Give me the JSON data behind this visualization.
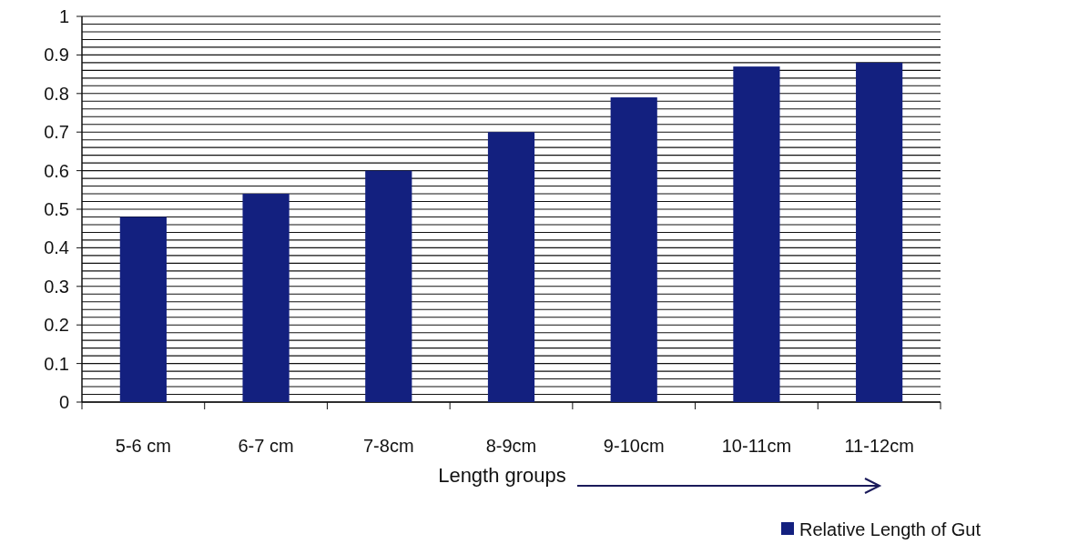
{
  "chart_data": {
    "type": "bar",
    "xlabel": "Length groups",
    "categories": [
      "5-6 cm",
      "6-7 cm",
      "7-8cm",
      "8-9cm",
      "9-10cm",
      "10-11cm",
      "11-12cm"
    ],
    "series": [
      {
        "name": "Relative Length of Gut",
        "color": "#13207f",
        "values": [
          0.48,
          0.54,
          0.6,
          0.7,
          0.79,
          0.87,
          0.88
        ]
      }
    ],
    "ylim": [
      0,
      1
    ],
    "yticks": [
      0,
      {
        "value": 0.02,
        "label": null
      },
      {
        "value": 0.04,
        "label": null
      },
      {
        "value": 0.06,
        "label": null
      },
      {
        "value": 0.08,
        "label": null
      },
      0.1,
      {
        "value": 0.12,
        "label": null
      },
      {
        "value": 0.14,
        "label": null
      },
      {
        "value": 0.16,
        "label": null
      },
      {
        "value": 0.18,
        "label": null
      },
      0.2,
      {
        "value": 0.22,
        "label": null
      },
      {
        "value": 0.24,
        "label": null
      },
      {
        "value": 0.26,
        "label": null
      },
      {
        "value": 0.28,
        "label": null
      },
      0.3,
      {
        "value": 0.32,
        "label": null
      },
      {
        "value": 0.34,
        "label": null
      },
      {
        "value": 0.36,
        "label": null
      },
      {
        "value": 0.38,
        "label": null
      },
      0.4,
      {
        "value": 0.42,
        "label": null
      },
      {
        "value": 0.44,
        "label": null
      },
      {
        "value": 0.46,
        "label": null
      },
      {
        "value": 0.48,
        "label": null
      },
      0.5,
      {
        "value": 0.52,
        "label": null
      },
      {
        "value": 0.54,
        "label": null
      },
      {
        "value": 0.56,
        "label": null
      },
      {
        "value": 0.58,
        "label": null
      },
      0.6,
      {
        "value": 0.62,
        "label": null
      },
      {
        "value": 0.64,
        "label": null
      },
      {
        "value": 0.66,
        "label": null
      },
      {
        "value": 0.68,
        "label": null
      },
      0.7,
      {
        "value": 0.72,
        "label": null
      },
      {
        "value": 0.74,
        "label": null
      },
      {
        "value": 0.76,
        "label": null
      },
      {
        "value": 0.78,
        "label": null
      },
      0.8,
      {
        "value": 0.82,
        "label": null
      },
      {
        "value": 0.84,
        "label": null
      },
      {
        "value": 0.86,
        "label": null
      },
      {
        "value": 0.88,
        "label": null
      },
      0.9,
      {
        "value": 0.92,
        "label": null
      },
      {
        "value": 0.94,
        "label": null
      },
      {
        "value": 0.96,
        "label": null
      },
      {
        "value": 0.98,
        "label": null
      },
      1
    ],
    "grid": "y",
    "legend": "bottom right"
  }
}
